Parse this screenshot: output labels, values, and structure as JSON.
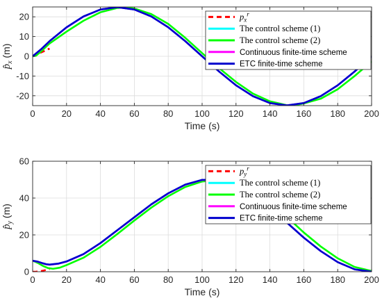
{
  "chart_data": [
    {
      "type": "line",
      "xlabel": "Time (s)",
      "ylabel": "p̂x (m)",
      "ylabel_main": "p̂",
      "ylabel_sub": "x",
      "ylabel_unit": " (m)",
      "xlim": [
        0,
        200
      ],
      "ylim": [
        -25,
        25
      ],
      "xticks": [
        0,
        20,
        40,
        60,
        80,
        100,
        120,
        140,
        160,
        180,
        200
      ],
      "yticks": [
        -20,
        -10,
        0,
        10,
        20
      ],
      "grid": true,
      "legend_position": "top-right",
      "series": [
        {
          "name": "px r",
          "legend_main": "p",
          "legend_sub": "x",
          "legend_sup": "r",
          "legend_style": "serif-italic",
          "color": "#ff0000",
          "dash": "dashed",
          "x": [
            0,
            2,
            4,
            6,
            8,
            10
          ],
          "y": [
            0,
            0.8,
            1.6,
            2.3,
            3.1,
            3.9
          ]
        },
        {
          "name": "The control scheme (1)",
          "legend_style": "serif",
          "color": "#00ffff",
          "dash": "solid",
          "x": [
            0,
            5,
            10,
            20,
            30,
            40,
            50,
            60,
            70,
            80,
            90,
            100,
            110,
            120,
            130,
            140,
            150,
            160,
            170,
            180,
            190,
            200
          ],
          "y": [
            0,
            3.5,
            7.7,
            14.6,
            20.1,
            23.7,
            24.9,
            23.7,
            20.2,
            14.7,
            7.7,
            0,
            -7.7,
            -14.7,
            -20.2,
            -23.7,
            -24.9,
            -23.7,
            -20.2,
            -14.7,
            -7.7,
            0
          ]
        },
        {
          "name": "The control scheme (2)",
          "legend_style": "serif",
          "color": "#00ff00",
          "dash": "solid",
          "x": [
            0,
            2,
            5,
            10,
            20,
            30,
            40,
            50,
            55,
            60,
            70,
            80,
            90,
            100,
            110,
            120,
            130,
            140,
            150,
            155,
            160,
            170,
            180,
            190,
            200
          ],
          "y": [
            0,
            0.3,
            2.5,
            6.5,
            12.5,
            18.0,
            22.3,
            24.5,
            24.8,
            24.2,
            21.4,
            16.4,
            9.4,
            1.6,
            -6.0,
            -13.0,
            -18.9,
            -22.8,
            -24.8,
            -24.7,
            -23.9,
            -21.5,
            -16.7,
            -10.0,
            -2.6
          ]
        },
        {
          "name": "Continuous finite-time scheme",
          "legend_style": "sans",
          "color": "#ff00ff",
          "dash": "solid",
          "x": [
            0,
            5,
            10,
            20,
            30,
            40,
            50,
            60,
            70,
            80,
            90,
            100,
            110,
            120,
            130,
            140,
            150,
            160,
            170,
            180,
            190,
            200
          ],
          "y": [
            0,
            3.5,
            7.6,
            14.6,
            20.1,
            23.7,
            24.9,
            23.7,
            20.2,
            14.7,
            7.7,
            0,
            -7.7,
            -14.7,
            -20.2,
            -23.7,
            -24.9,
            -23.7,
            -20.2,
            -14.7,
            -7.7,
            0
          ]
        },
        {
          "name": "ETC finite-time scheme",
          "legend_style": "sans",
          "color": "#0000cd",
          "dash": "solid",
          "x": [
            0,
            5,
            10,
            20,
            30,
            40,
            50,
            60,
            70,
            80,
            90,
            100,
            110,
            120,
            130,
            140,
            150,
            160,
            170,
            180,
            190,
            200
          ],
          "y": [
            0,
            3.6,
            7.7,
            14.7,
            20.2,
            23.7,
            24.9,
            23.7,
            20.2,
            14.7,
            7.7,
            0,
            -7.7,
            -14.7,
            -20.2,
            -23.7,
            -24.9,
            -23.7,
            -20.2,
            -14.7,
            -7.7,
            0
          ]
        }
      ]
    },
    {
      "type": "line",
      "xlabel": "Time (s)",
      "ylabel": "p̂y (m)",
      "ylabel_main": "p̂",
      "ylabel_sub": "y",
      "ylabel_unit": " (m)",
      "xlim": [
        0,
        200
      ],
      "ylim": [
        0,
        60
      ],
      "xticks": [
        0,
        20,
        40,
        60,
        80,
        100,
        120,
        140,
        160,
        180,
        200
      ],
      "yticks": [
        0,
        20,
        40,
        60
      ],
      "grid": true,
      "legend_position": "top-right",
      "series": [
        {
          "name": "py r",
          "legend_main": "p",
          "legend_sub": "y",
          "legend_sup": "r",
          "legend_style": "serif-italic",
          "color": "#ff0000",
          "dash": "dashed",
          "x": [
            0,
            2,
            4,
            6,
            8,
            10
          ],
          "y": [
            0,
            0.05,
            0.25,
            0.55,
            0.95,
            1.5
          ]
        },
        {
          "name": "The control scheme (1)",
          "legend_style": "serif",
          "color": "#00ffff",
          "dash": "solid",
          "x": [
            0,
            3,
            6,
            8,
            10,
            15,
            20,
            30,
            40,
            50,
            60,
            70,
            80,
            90,
            100,
            110,
            120,
            130,
            140,
            150,
            160,
            170,
            180,
            190,
            200
          ],
          "y": [
            6,
            5.4,
            4.5,
            4.0,
            3.8,
            4.3,
            5.5,
            9.5,
            15.5,
            22.5,
            29.5,
            36.5,
            42.5,
            47.2,
            49.8,
            49.8,
            47.5,
            42.5,
            35.5,
            26.7,
            18.5,
            11.2,
            5.2,
            1.3,
            0
          ]
        },
        {
          "name": "The control scheme (2)",
          "legend_style": "serif",
          "color": "#00ff00",
          "dash": "solid",
          "x": [
            0,
            3,
            6,
            9,
            12,
            16,
            20,
            30,
            40,
            50,
            60,
            70,
            80,
            90,
            100,
            110,
            120,
            130,
            140,
            150,
            160,
            170,
            180,
            190,
            200
          ],
          "y": [
            6,
            4.8,
            3.2,
            2.0,
            1.6,
            2.2,
            3.6,
            7.6,
            13.5,
            20.5,
            27.8,
            34.8,
            41.0,
            46.0,
            49.0,
            50.0,
            48.6,
            44.5,
            38.0,
            29.8,
            21.3,
            13.7,
            7.3,
            2.6,
            0.4
          ]
        },
        {
          "name": "Continuous finite-time scheme",
          "legend_style": "sans",
          "color": "#ff00ff",
          "dash": "solid",
          "x": [
            0,
            3,
            6,
            8,
            10,
            15,
            20,
            30,
            40,
            50,
            60,
            70,
            80,
            90,
            100,
            110,
            120,
            130,
            140,
            150,
            160,
            170,
            180,
            190,
            200
          ],
          "y": [
            6,
            5.4,
            4.5,
            4.0,
            3.8,
            4.3,
            5.5,
            9.5,
            15.5,
            22.5,
            29.5,
            36.5,
            42.5,
            47.2,
            49.8,
            49.8,
            47.5,
            42.5,
            35.5,
            26.7,
            18.5,
            11.2,
            5.2,
            1.3,
            0
          ]
        },
        {
          "name": "ETC finite-time scheme",
          "legend_style": "sans",
          "color": "#0000cd",
          "dash": "solid",
          "x": [
            0,
            3,
            6,
            8,
            10,
            15,
            20,
            30,
            40,
            50,
            60,
            70,
            80,
            90,
            100,
            110,
            120,
            130,
            140,
            150,
            160,
            170,
            180,
            190,
            200
          ],
          "y": [
            6,
            5.5,
            4.6,
            4.1,
            3.9,
            4.4,
            5.6,
            9.6,
            15.6,
            22.6,
            29.6,
            36.6,
            42.6,
            47.3,
            49.9,
            49.9,
            47.5,
            42.5,
            35.5,
            26.7,
            18.5,
            11.2,
            5.2,
            1.3,
            0
          ]
        }
      ]
    }
  ]
}
